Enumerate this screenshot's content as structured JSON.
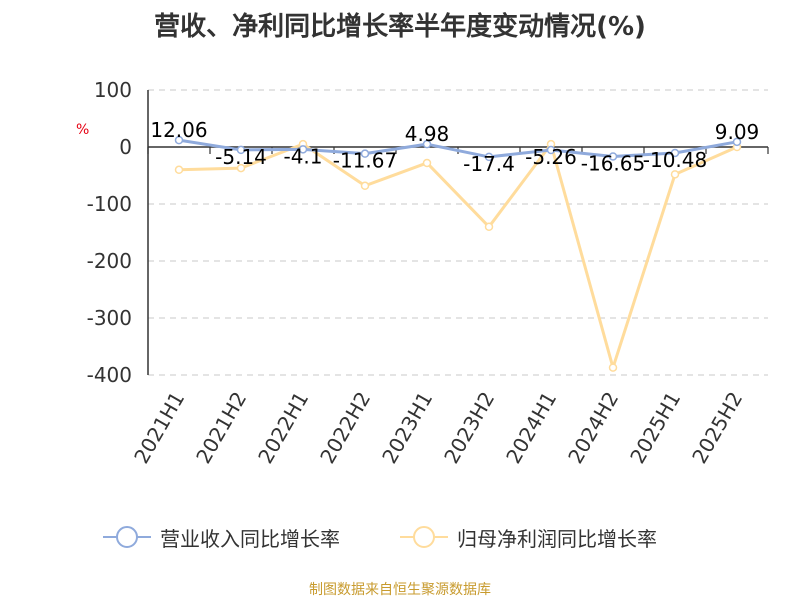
{
  "chart_data": {
    "type": "line",
    "title": "营收、净利同比增长率半年度变动情况(%)",
    "ylabel": "%",
    "categories": [
      "2021H1",
      "2021H2",
      "2022H1",
      "2022H2",
      "2023H1",
      "2023H2",
      "2024H1",
      "2024H2",
      "2025H1",
      "2025H2"
    ],
    "yticks": [
      "100",
      "0",
      "-100",
      "-200",
      "-300",
      "-400"
    ],
    "ylim": [
      -400,
      100
    ],
    "grid": true,
    "legend_position": "bottom",
    "series": [
      {
        "name": "营业收入同比增长率",
        "color": "#8faadc",
        "values": [
          12.06,
          -5.14,
          -4.1,
          -11.67,
          4.98,
          -17.4,
          -5.26,
          -16.65,
          -10.48,
          9.09
        ],
        "labels": [
          "12.06",
          "-5.14",
          "-4.1",
          "-11.67",
          "4.98",
          "-17.4",
          "-5.26",
          "-16.65",
          "-10.48",
          "9.09"
        ]
      },
      {
        "name": "归母净利润同比增长率",
        "color": "#ffdc9c",
        "values": [
          -40,
          -37,
          5,
          -68,
          -28,
          -140,
          5,
          -387,
          -48,
          0
        ]
      }
    ]
  },
  "source": "制图数据来自恒生聚源数据库"
}
